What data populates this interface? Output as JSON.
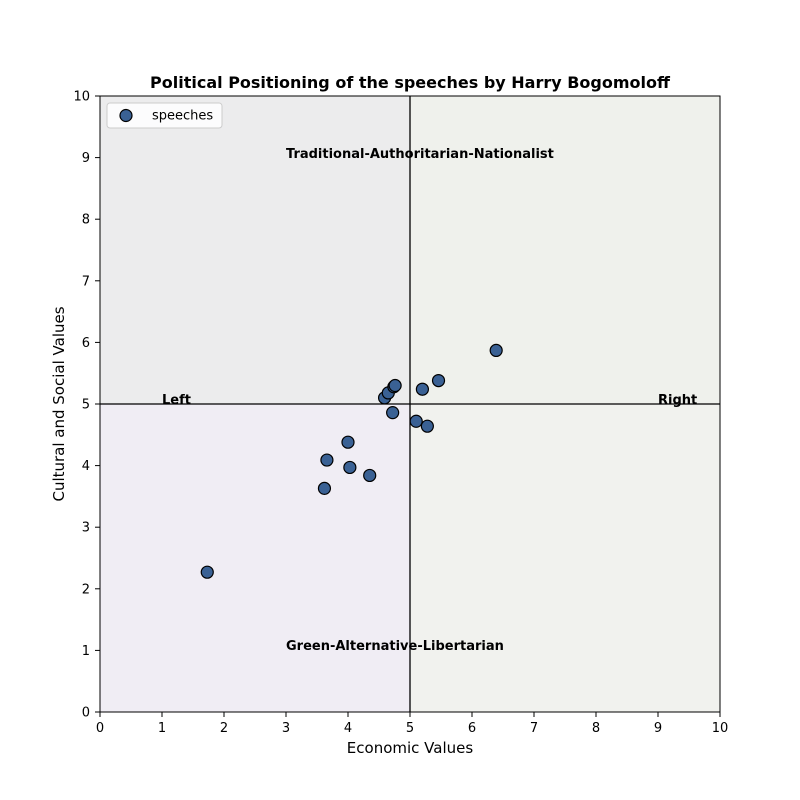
{
  "chart_data": {
    "type": "scatter",
    "title": "Political Positioning of the speeches by Harry Bogomoloff",
    "xlabel": "Economic Values",
    "ylabel": "Cultural and Social Values",
    "xlim": [
      0,
      10
    ],
    "ylim": [
      0,
      10
    ],
    "xticks": [
      "0",
      "1",
      "2",
      "3",
      "4",
      "5",
      "6",
      "7",
      "8",
      "9",
      "10"
    ],
    "yticks": [
      "0",
      "1",
      "2",
      "3",
      "4",
      "5",
      "6",
      "7",
      "8",
      "9",
      "10"
    ],
    "grid": false,
    "legend": {
      "position": "top-left",
      "entries": [
        "speeches"
      ]
    },
    "quadrant_labels": {
      "top": "Traditional-Authoritarian-Nationalist",
      "bottom": "Green-Alternative-Libertarian",
      "left": "Left",
      "right": "Right"
    },
    "quadrant_colors": {
      "top_left": "#ececed",
      "top_right": "#eff1ec",
      "bottom_left": "#f0edf4",
      "bottom_right": "#f1f2ee"
    },
    "marker_color": "#3a6194",
    "marker_edge": "#000000",
    "series": [
      {
        "name": "speeches",
        "points": [
          [
            1.73,
            2.27
          ],
          [
            3.62,
            3.63
          ],
          [
            3.66,
            4.09
          ],
          [
            4.0,
            4.38
          ],
          [
            4.03,
            3.97
          ],
          [
            4.35,
            3.84
          ],
          [
            4.59,
            5.1
          ],
          [
            4.65,
            5.18
          ],
          [
            4.72,
            4.86
          ],
          [
            4.74,
            5.28
          ],
          [
            4.76,
            5.3
          ],
          [
            5.1,
            4.72
          ],
          [
            5.2,
            5.24
          ],
          [
            5.28,
            4.64
          ],
          [
            5.46,
            5.38
          ],
          [
            6.39,
            5.87
          ]
        ]
      }
    ]
  }
}
